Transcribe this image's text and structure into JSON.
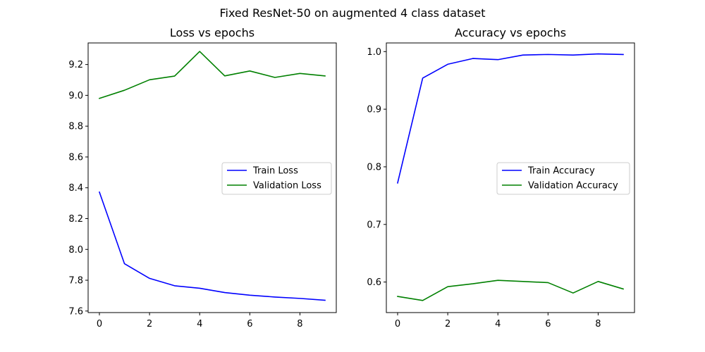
{
  "suptitle": "Fixed ResNet-50 on augmented 4 class dataset",
  "chart_data": [
    {
      "type": "line",
      "title": "Loss vs epochs",
      "xlabel": "",
      "ylabel": "",
      "x": [
        0,
        1,
        2,
        3,
        4,
        5,
        6,
        7,
        8,
        9
      ],
      "xlim": [
        -0.45,
        9.45
      ],
      "ylim": [
        7.59,
        9.34
      ],
      "xticks": [
        0,
        2,
        4,
        6,
        8
      ],
      "yticks": [
        7.6,
        7.8,
        8.0,
        8.2,
        8.4,
        8.6,
        8.8,
        9.0,
        9.2
      ],
      "ytick_labels": [
        "7.6",
        "7.8",
        "8.0",
        "8.2",
        "8.4",
        "8.6",
        "8.8",
        "9.0",
        "9.2"
      ],
      "grid": false,
      "legend_position": "center-right",
      "series": [
        {
          "name": "Train Loss",
          "color": "#0000ff",
          "values": [
            8.372,
            7.907,
            7.812,
            7.764,
            7.748,
            7.72,
            7.703,
            7.691,
            7.682,
            7.67
          ]
        },
        {
          "name": "Validation Loss",
          "color": "#008000",
          "values": [
            8.98,
            9.033,
            9.101,
            9.125,
            9.285,
            9.126,
            9.158,
            9.116,
            9.142,
            9.126
          ]
        }
      ]
    },
    {
      "type": "line",
      "title": "Accuracy vs epochs",
      "xlabel": "",
      "ylabel": "",
      "x": [
        0,
        1,
        2,
        3,
        4,
        5,
        6,
        7,
        8,
        9
      ],
      "xlim": [
        -0.45,
        9.45
      ],
      "ylim": [
        0.547,
        1.015
      ],
      "xticks": [
        0,
        2,
        4,
        6,
        8
      ],
      "yticks": [
        0.6,
        0.7,
        0.8,
        0.9,
        1.0
      ],
      "ytick_labels": [
        "0.6",
        "0.7",
        "0.8",
        "0.9",
        "1.0"
      ],
      "grid": false,
      "legend_position": "center-right",
      "series": [
        {
          "name": "Train Accuracy",
          "color": "#0000ff",
          "values": [
            0.772,
            0.954,
            0.978,
            0.988,
            0.986,
            0.994,
            0.995,
            0.994,
            0.996,
            0.995
          ]
        },
        {
          "name": "Validation Accuracy",
          "color": "#008000",
          "values": [
            0.575,
            0.568,
            0.592,
            0.597,
            0.603,
            0.601,
            0.599,
            0.581,
            0.601,
            0.588
          ]
        }
      ]
    }
  ]
}
